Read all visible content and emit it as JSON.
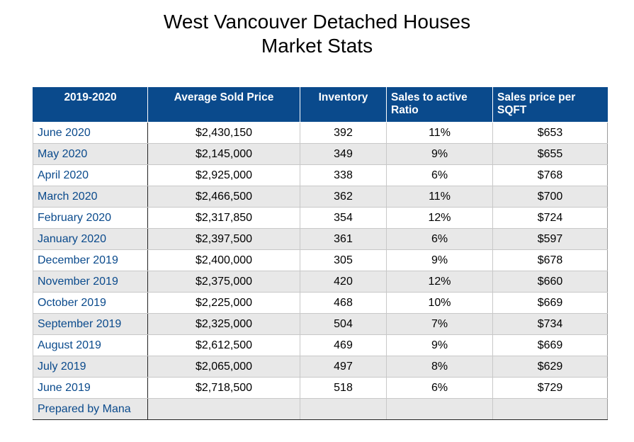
{
  "title": {
    "line1": "West Vancouver Detached Houses",
    "line2": "Market Stats"
  },
  "table": {
    "headers": [
      "2019-2020",
      "Average Sold Price",
      "Inventory",
      "Sales to active Ratio",
      "Sales price per SQFT"
    ],
    "rows": [
      [
        "June 2020",
        "$2,430,150",
        "392",
        "11%",
        "$653"
      ],
      [
        "May 2020",
        "$2,145,000",
        "349",
        "9%",
        "$655"
      ],
      [
        "April 2020",
        "$2,925,000",
        "338",
        "6%",
        "$768"
      ],
      [
        "March 2020",
        "$2,466,500",
        "362",
        "11%",
        "$700"
      ],
      [
        "February 2020",
        "$2,317,850",
        "354",
        "12%",
        "$724"
      ],
      [
        "January 2020",
        "$2,397,500",
        "361",
        "6%",
        "$597"
      ],
      [
        "December 2019",
        "$2,400,000",
        "305",
        "9%",
        "$678"
      ],
      [
        "November 2019",
        "$2,375,000",
        "420",
        "12%",
        "$660"
      ],
      [
        "October 2019",
        "$2,225,000",
        "468",
        "10%",
        "$669"
      ],
      [
        "September 2019",
        "$2,325,000",
        "504",
        "7%",
        "$734"
      ],
      [
        "August 2019",
        "$2,612,500",
        "469",
        "9%",
        "$669"
      ],
      [
        "July 2019",
        "$2,065,000",
        "497",
        "8%",
        "$629"
      ],
      [
        "June 2019",
        "$2,718,500",
        "518",
        "6%",
        "$729"
      ],
      [
        "Prepared by Mana",
        "",
        "",
        "",
        ""
      ]
    ]
  },
  "colors": {
    "header_bg": "#0a4a8c",
    "header_text": "#ffffff",
    "month_text": "#0a4a8c",
    "stripe": "#e8e8e8"
  }
}
